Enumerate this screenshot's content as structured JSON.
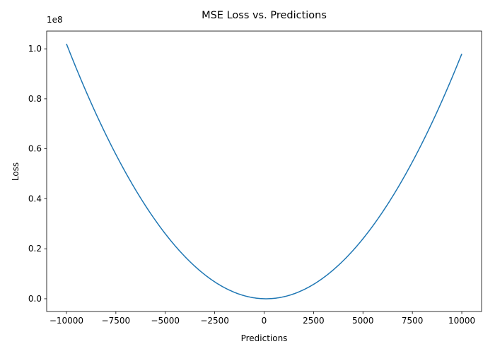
{
  "chart_data": {
    "type": "line",
    "title": "MSE Loss vs. Predictions",
    "xlabel": "Predictions",
    "ylabel": "Loss",
    "y_offset_text": "1e8",
    "xlim": [
      -11000,
      11000
    ],
    "ylim": [
      -5100000,
      107100000
    ],
    "x_ticks": [
      -10000,
      -7500,
      -5000,
      -2500,
      0,
      2500,
      5000,
      7500,
      10000
    ],
    "x_tick_labels": [
      "−10000",
      "−7500",
      "−5000",
      "−2500",
      "0",
      "2500",
      "5000",
      "7500",
      "10000"
    ],
    "y_ticks": [
      0,
      20000000,
      40000000,
      60000000,
      80000000,
      100000000
    ],
    "y_tick_labels": [
      "0.0",
      "0.2",
      "0.4",
      "0.6",
      "0.8",
      "1.0"
    ],
    "grid": false,
    "legend": "none",
    "line_color": "#1f77b4",
    "series": [
      {
        "x": [
          -10000,
          -9000,
          -8000,
          -7000,
          -6000,
          -5000,
          -4000,
          -3000,
          -2000,
          -1000,
          0,
          100,
          1000,
          2000,
          3000,
          4000,
          5000,
          6000,
          7000,
          8000,
          9000,
          10000
        ],
        "values": [
          102010000,
          82810000,
          65610000,
          50410000,
          37210000,
          26010000,
          16810000,
          9610000,
          4410000,
          1210000,
          10000,
          0,
          810000,
          3610000,
          8410000,
          15210000,
          24010000,
          34810000,
          47610000,
          62410000,
          79210000,
          98010000
        ]
      }
    ]
  }
}
